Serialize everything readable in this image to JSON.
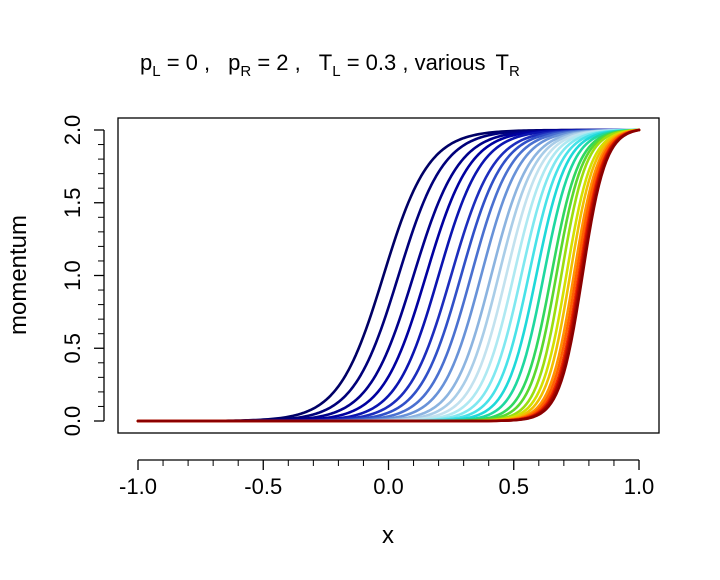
{
  "chart_data": {
    "type": "line",
    "title_parts": {
      "pL_base": "p",
      "pL_sub": "L",
      "pL_rest": " = 0 ,",
      "pR_base": "p",
      "pR_sub": "R",
      "pR_rest": " = 2 ,",
      "TL_base": "T",
      "TL_sub": "L",
      "TL_rest": " = 0.3 , various",
      "TR_base": "T",
      "TR_sub": "R"
    },
    "xlabel": "x",
    "ylabel": "momentum",
    "xlim": [
      -1.0,
      1.0
    ],
    "ylim": [
      0.0,
      2.0
    ],
    "x_ticks": [
      "-1.0",
      "-0.5",
      "0.0",
      "0.5",
      "1.0"
    ],
    "y_ticks": [
      "0.0",
      "0.5",
      "1.0",
      "1.5",
      "2.0"
    ],
    "grid": false,
    "legend": "none",
    "curve_model": "p(x) = 2 * (1 + tanh((x - c) / w)) normalized so p(-1)=0 and p(1)=2",
    "series": [
      {
        "color": "#000066",
        "center": -0.02,
        "width": 0.18
      },
      {
        "color": "#00007a",
        "center": 0.04,
        "width": 0.18
      },
      {
        "color": "#00008b",
        "center": 0.1,
        "width": 0.18
      },
      {
        "color": "#0000a0",
        "center": 0.15,
        "width": 0.175
      },
      {
        "color": "#0b14b0",
        "center": 0.2,
        "width": 0.17
      },
      {
        "color": "#1c2dbd",
        "center": 0.25,
        "width": 0.17
      },
      {
        "color": "#3050c8",
        "center": 0.29,
        "width": 0.165
      },
      {
        "color": "#4a70d0",
        "center": 0.33,
        "width": 0.16
      },
      {
        "color": "#6892d8",
        "center": 0.37,
        "width": 0.155
      },
      {
        "color": "#8cb4e0",
        "center": 0.41,
        "width": 0.15
      },
      {
        "color": "#a9cde8",
        "center": 0.44,
        "width": 0.145
      },
      {
        "color": "#c2e2ef",
        "center": 0.47,
        "width": 0.14
      },
      {
        "color": "#aee9f2",
        "center": 0.5,
        "width": 0.135
      },
      {
        "color": "#7fe8f0",
        "center": 0.53,
        "width": 0.13
      },
      {
        "color": "#47e2e8",
        "center": 0.56,
        "width": 0.125
      },
      {
        "color": "#1fd9d9",
        "center": 0.59,
        "width": 0.12
      },
      {
        "color": "#1fd8a0",
        "center": 0.62,
        "width": 0.115
      },
      {
        "color": "#30d860",
        "center": 0.65,
        "width": 0.11
      },
      {
        "color": "#5ad830",
        "center": 0.67,
        "width": 0.105
      },
      {
        "color": "#9ade10",
        "center": 0.69,
        "width": 0.1
      },
      {
        "color": "#d4e000",
        "center": 0.71,
        "width": 0.1
      },
      {
        "color": "#f0c000",
        "center": 0.725,
        "width": 0.098
      },
      {
        "color": "#ff9200",
        "center": 0.74,
        "width": 0.096
      },
      {
        "color": "#ff6000",
        "center": 0.75,
        "width": 0.095
      },
      {
        "color": "#f03000",
        "center": 0.76,
        "width": 0.094
      },
      {
        "color": "#d01000",
        "center": 0.765,
        "width": 0.093
      },
      {
        "color": "#a80800",
        "center": 0.77,
        "width": 0.093
      },
      {
        "color": "#8b0000",
        "center": 0.775,
        "width": 0.092
      }
    ]
  }
}
